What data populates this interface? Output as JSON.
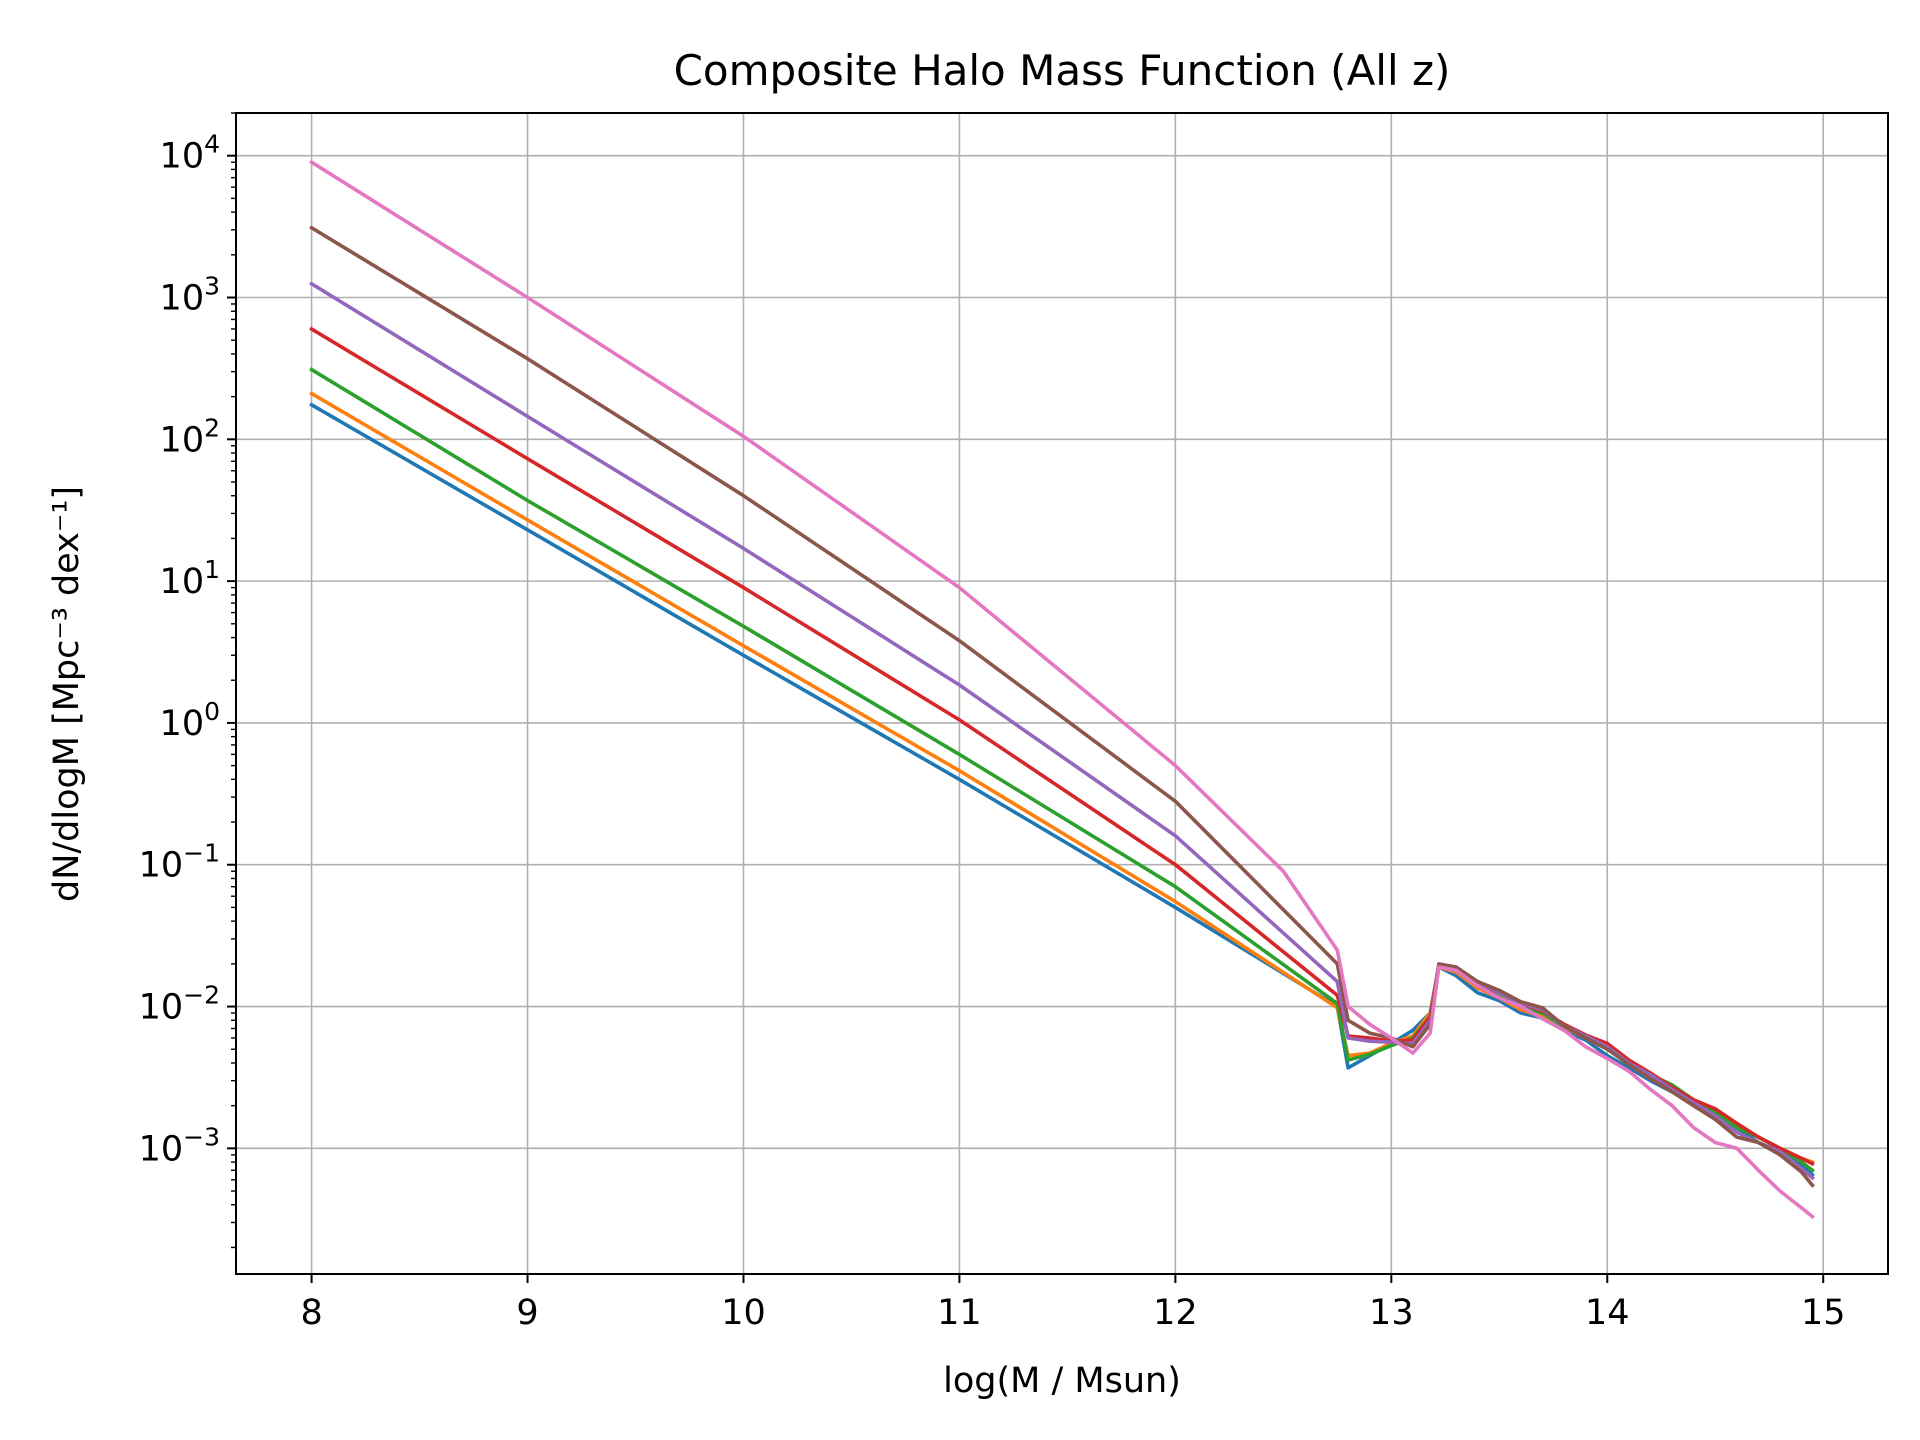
{
  "chart_data": {
    "type": "line",
    "title": "Composite Halo Mass Function (All z)",
    "xlabel": "log(M / Msun)",
    "ylabel": "dN/dlogM [Mpc⁻³ dex⁻¹]",
    "xlim": [
      7.65,
      15.3
    ],
    "ylim": [
      0.00013,
      20000
    ],
    "yscale": "log",
    "grid": true,
    "x_ticks": [
      8,
      9,
      10,
      11,
      12,
      13,
      14,
      15
    ],
    "y_ticks": [
      {
        "value": 0.001,
        "base": "10",
        "exp": "−3"
      },
      {
        "value": 0.01,
        "base": "10",
        "exp": "−2"
      },
      {
        "value": 0.1,
        "base": "10",
        "exp": "−1"
      },
      {
        "value": 1,
        "base": "10",
        "exp": "0"
      },
      {
        "value": 10,
        "base": "10",
        "exp": "1"
      },
      {
        "value": 100,
        "base": "10",
        "exp": "2"
      },
      {
        "value": 1000,
        "base": "10",
        "exp": "3"
      },
      {
        "value": 10000,
        "base": "10",
        "exp": "4"
      }
    ],
    "series": [
      {
        "color": "#1f77b4",
        "points": [
          [
            8,
            175
          ],
          [
            9,
            23
          ],
          [
            10,
            3
          ],
          [
            11,
            0.4
          ],
          [
            12,
            0.05
          ],
          [
            12.75,
            0.01
          ],
          [
            12.8,
            0.0037
          ],
          [
            12.9,
            0.0045
          ],
          [
            13,
            0.0055
          ],
          [
            13.1,
            0.0068
          ],
          [
            13.18,
            0.009
          ],
          [
            13.22,
            0.019
          ],
          [
            13.3,
            0.0165
          ],
          [
            13.4,
            0.0125
          ],
          [
            13.5,
            0.011
          ],
          [
            13.6,
            0.009
          ],
          [
            13.7,
            0.0083
          ],
          [
            13.8,
            0.0068
          ],
          [
            13.9,
            0.0058
          ],
          [
            14,
            0.0045
          ],
          [
            14.1,
            0.0037
          ],
          [
            14.2,
            0.003
          ],
          [
            14.3,
            0.0025
          ],
          [
            14.4,
            0.0021
          ],
          [
            14.5,
            0.0017
          ],
          [
            14.6,
            0.0014
          ],
          [
            14.7,
            0.0011
          ],
          [
            14.8,
            0.00095
          ],
          [
            14.9,
            0.00075
          ],
          [
            14.95,
            0.00065
          ]
        ]
      },
      {
        "color": "#ff7f0e",
        "points": [
          [
            8,
            210
          ],
          [
            9,
            27
          ],
          [
            10,
            3.5
          ],
          [
            11,
            0.46
          ],
          [
            12,
            0.055
          ],
          [
            12.75,
            0.0098
          ],
          [
            12.8,
            0.0045
          ],
          [
            12.9,
            0.0047
          ],
          [
            13,
            0.0055
          ],
          [
            13.1,
            0.0062
          ],
          [
            13.18,
            0.009
          ],
          [
            13.22,
            0.019
          ],
          [
            13.3,
            0.0175
          ],
          [
            13.4,
            0.0135
          ],
          [
            13.5,
            0.0115
          ],
          [
            13.6,
            0.0095
          ],
          [
            13.7,
            0.0085
          ],
          [
            13.8,
            0.0072
          ],
          [
            13.9,
            0.006
          ],
          [
            14,
            0.005
          ],
          [
            14.1,
            0.0041
          ],
          [
            14.2,
            0.0033
          ],
          [
            14.3,
            0.0027
          ],
          [
            14.4,
            0.0022
          ],
          [
            14.5,
            0.0018
          ],
          [
            14.6,
            0.0015
          ],
          [
            14.7,
            0.0012
          ],
          [
            14.8,
            0.001
          ],
          [
            14.9,
            0.00085
          ],
          [
            14.95,
            0.0008
          ]
        ]
      },
      {
        "color": "#2ca02c",
        "points": [
          [
            8,
            310
          ],
          [
            9,
            37
          ],
          [
            10,
            4.8
          ],
          [
            11,
            0.6
          ],
          [
            12,
            0.07
          ],
          [
            12.75,
            0.0105
          ],
          [
            12.8,
            0.0042
          ],
          [
            12.9,
            0.0046
          ],
          [
            13,
            0.0053
          ],
          [
            13.1,
            0.006
          ],
          [
            13.18,
            0.0085
          ],
          [
            13.22,
            0.0195
          ],
          [
            13.3,
            0.018
          ],
          [
            13.4,
            0.014
          ],
          [
            13.5,
            0.012
          ],
          [
            13.6,
            0.01
          ],
          [
            13.7,
            0.009
          ],
          [
            13.8,
            0.0072
          ],
          [
            13.9,
            0.0062
          ],
          [
            14,
            0.005
          ],
          [
            14.1,
            0.004
          ],
          [
            14.2,
            0.0033
          ],
          [
            14.3,
            0.0028
          ],
          [
            14.4,
            0.0022
          ],
          [
            14.5,
            0.0018
          ],
          [
            14.6,
            0.0014
          ],
          [
            14.7,
            0.0012
          ],
          [
            14.8,
            0.001
          ],
          [
            14.9,
            0.0008
          ],
          [
            14.95,
            0.0007
          ]
        ]
      },
      {
        "color": "#d62728",
        "points": [
          [
            8,
            600
          ],
          [
            9,
            73
          ],
          [
            10,
            9
          ],
          [
            11,
            1.05
          ],
          [
            12,
            0.1
          ],
          [
            12.75,
            0.012
          ],
          [
            12.8,
            0.0062
          ],
          [
            12.9,
            0.006
          ],
          [
            13,
            0.0057
          ],
          [
            13.1,
            0.0058
          ],
          [
            13.18,
            0.0085
          ],
          [
            13.22,
            0.0195
          ],
          [
            13.3,
            0.0185
          ],
          [
            13.4,
            0.0145
          ],
          [
            13.5,
            0.0125
          ],
          [
            13.6,
            0.0105
          ],
          [
            13.7,
            0.0093
          ],
          [
            13.8,
            0.0075
          ],
          [
            13.9,
            0.0063
          ],
          [
            14,
            0.0055
          ],
          [
            14.1,
            0.0042
          ],
          [
            14.2,
            0.0034
          ],
          [
            14.3,
            0.0027
          ],
          [
            14.4,
            0.0022
          ],
          [
            14.5,
            0.0019
          ],
          [
            14.6,
            0.0015
          ],
          [
            14.7,
            0.0012
          ],
          [
            14.8,
            0.001
          ],
          [
            14.9,
            0.00085
          ],
          [
            14.95,
            0.00078
          ]
        ]
      },
      {
        "color": "#9467bd",
        "points": [
          [
            8,
            1250
          ],
          [
            9,
            145
          ],
          [
            10,
            17
          ],
          [
            11,
            1.85
          ],
          [
            12,
            0.16
          ],
          [
            12.75,
            0.015
          ],
          [
            12.8,
            0.006
          ],
          [
            12.9,
            0.0057
          ],
          [
            13,
            0.0056
          ],
          [
            13.1,
            0.0055
          ],
          [
            13.18,
            0.008
          ],
          [
            13.22,
            0.0195
          ],
          [
            13.3,
            0.0185
          ],
          [
            13.4,
            0.0148
          ],
          [
            13.5,
            0.0125
          ],
          [
            13.6,
            0.0105
          ],
          [
            13.7,
            0.0095
          ],
          [
            13.8,
            0.0073
          ],
          [
            13.9,
            0.0062
          ],
          [
            14,
            0.0052
          ],
          [
            14.1,
            0.004
          ],
          [
            14.2,
            0.0033
          ],
          [
            14.3,
            0.0026
          ],
          [
            14.4,
            0.0021
          ],
          [
            14.5,
            0.0017
          ],
          [
            14.6,
            0.0013
          ],
          [
            14.7,
            0.0011
          ],
          [
            14.8,
            0.00095
          ],
          [
            14.9,
            0.00072
          ],
          [
            14.95,
            0.00062
          ]
        ]
      },
      {
        "color": "#8c564b",
        "points": [
          [
            8,
            3100
          ],
          [
            9,
            370
          ],
          [
            10,
            40
          ],
          [
            11,
            3.8
          ],
          [
            12,
            0.28
          ],
          [
            12.75,
            0.02
          ],
          [
            12.8,
            0.008
          ],
          [
            12.9,
            0.0065
          ],
          [
            13,
            0.006
          ],
          [
            13.1,
            0.0052
          ],
          [
            13.18,
            0.0075
          ],
          [
            13.22,
            0.02
          ],
          [
            13.3,
            0.019
          ],
          [
            13.4,
            0.015
          ],
          [
            13.5,
            0.013
          ],
          [
            13.6,
            0.0108
          ],
          [
            13.7,
            0.0098
          ],
          [
            13.8,
            0.0073
          ],
          [
            13.9,
            0.006
          ],
          [
            14,
            0.005
          ],
          [
            14.1,
            0.0039
          ],
          [
            14.2,
            0.0031
          ],
          [
            14.3,
            0.0025
          ],
          [
            14.4,
            0.002
          ],
          [
            14.5,
            0.0016
          ],
          [
            14.6,
            0.0012
          ],
          [
            14.7,
            0.0011
          ],
          [
            14.8,
            0.0009
          ],
          [
            14.9,
            0.00068
          ],
          [
            14.95,
            0.00055
          ]
        ]
      },
      {
        "color": "#e377c2",
        "points": [
          [
            8,
            9000
          ],
          [
            9,
            1000
          ],
          [
            10,
            105
          ],
          [
            11,
            9
          ],
          [
            12,
            0.5
          ],
          [
            12.5,
            0.09
          ],
          [
            12.75,
            0.025
          ],
          [
            12.8,
            0.01
          ],
          [
            12.9,
            0.0075
          ],
          [
            13,
            0.006
          ],
          [
            13.1,
            0.0047
          ],
          [
            13.18,
            0.0065
          ],
          [
            13.22,
            0.019
          ],
          [
            13.3,
            0.018
          ],
          [
            13.4,
            0.014
          ],
          [
            13.5,
            0.0115
          ],
          [
            13.6,
            0.01
          ],
          [
            13.7,
            0.0082
          ],
          [
            13.8,
            0.0068
          ],
          [
            13.9,
            0.0052
          ],
          [
            14,
            0.0043
          ],
          [
            14.1,
            0.0035
          ],
          [
            14.2,
            0.0026
          ],
          [
            14.3,
            0.002
          ],
          [
            14.4,
            0.0014
          ],
          [
            14.5,
            0.0011
          ],
          [
            14.6,
            0.001
          ],
          [
            14.7,
            0.0007
          ],
          [
            14.8,
            0.0005
          ],
          [
            14.9,
            0.00038
          ],
          [
            14.95,
            0.00033
          ]
        ]
      }
    ]
  }
}
